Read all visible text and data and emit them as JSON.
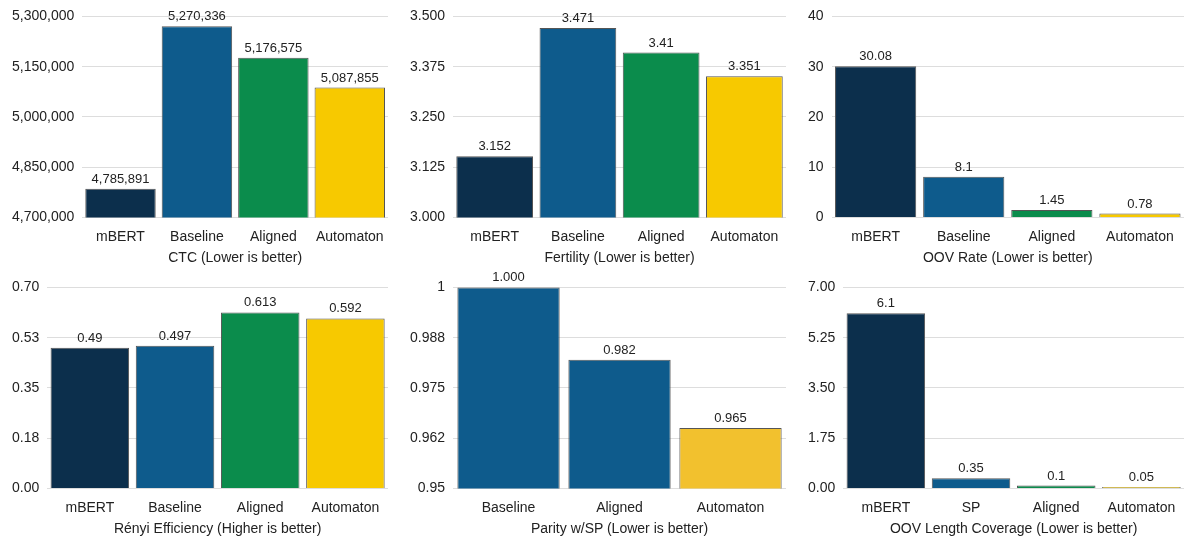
{
  "chart_data": [
    {
      "type": "bar",
      "xlabel": "CTC (Lower is better)",
      "categories": [
        "mBERT",
        "Baseline",
        "Aligned",
        "Automaton"
      ],
      "values": [
        4785891,
        5270336,
        5176575,
        5087855
      ],
      "value_labels": [
        "4,785,891",
        "5,270,336",
        "5,176,575",
        "5,087,855"
      ],
      "colors": [
        "#0c2f4c",
        "#0e5b8c",
        "#0b8c4c",
        "#f7c900"
      ],
      "ylim": [
        4700000,
        5300000
      ],
      "yticks": [
        {
          "value": 4700000,
          "label": "4,700,000"
        },
        {
          "value": 4850000,
          "label": "4,850,000"
        },
        {
          "value": 5000000,
          "label": "5,000,000"
        },
        {
          "value": 5150000,
          "label": "5,150,000"
        },
        {
          "value": 5300000,
          "label": "5,300,000"
        }
      ],
      "grid": "y"
    },
    {
      "type": "bar",
      "xlabel": "Fertility (Lower is better)",
      "categories": [
        "mBERT",
        "Baseline",
        "Aligned",
        "Automaton"
      ],
      "values": [
        3.152,
        3.471,
        3.41,
        3.351
      ],
      "value_labels": [
        "3.152",
        "3.471",
        "3.41",
        "3.351"
      ],
      "colors": [
        "#0c2f4c",
        "#0e5b8c",
        "#0b8c4c",
        "#f7c900"
      ],
      "ylim": [
        3.0,
        3.5
      ],
      "yticks": [
        {
          "value": 3.0,
          "label": "3.000"
        },
        {
          "value": 3.125,
          "label": "3.125"
        },
        {
          "value": 3.25,
          "label": "3.250"
        },
        {
          "value": 3.375,
          "label": "3.375"
        },
        {
          "value": 3.5,
          "label": "3.500"
        }
      ],
      "grid": "y"
    },
    {
      "type": "bar",
      "xlabel": "OOV Rate (Lower is better)",
      "categories": [
        "mBERT",
        "Baseline",
        "Aligned",
        "Automaton"
      ],
      "values": [
        30.08,
        8.1,
        1.45,
        0.78
      ],
      "value_labels": [
        "30.08",
        "8.1",
        "1.45",
        "0.78"
      ],
      "colors": [
        "#0c2f4c",
        "#0e5b8c",
        "#0b8c4c",
        "#f7c900"
      ],
      "ylim": [
        0,
        40
      ],
      "yticks": [
        0,
        10,
        20,
        30,
        40
      ],
      "grid": "y"
    },
    {
      "type": "bar",
      "xlabel": "Rényi Efficiency (Higher is better)",
      "categories": [
        "mBERT",
        "Baseline",
        "Aligned",
        "Automaton"
      ],
      "values": [
        0.49,
        0.497,
        0.613,
        0.592
      ],
      "value_labels": [
        "0.49",
        "0.497",
        "0.613",
        "0.592"
      ],
      "colors": [
        "#0c2f4c",
        "#0e5b8c",
        "#0b8c4c",
        "#f7c900"
      ],
      "ylim": [
        0,
        0.7
      ],
      "yticks": [
        {
          "value": 0,
          "label": "0.00"
        },
        {
          "value": 0.175,
          "label": "0.18"
        },
        {
          "value": 0.35,
          "label": "0.35"
        },
        {
          "value": 0.525,
          "label": "0.53"
        },
        {
          "value": 0.7,
          "label": "0.70"
        }
      ],
      "grid": "y"
    },
    {
      "type": "bar",
      "xlabel": "Parity w/SP (Lower is better)",
      "categories": [
        "Baseline",
        "Aligned",
        "Automaton"
      ],
      "values": [
        1.0,
        0.982,
        0.965
      ],
      "value_labels": [
        "1.000",
        "0.982",
        "0.965"
      ],
      "colors": [
        "#0e5b8c",
        "#0e5b8c",
        "#f2c12e"
      ],
      "ylim": [
        0.95,
        1.0
      ],
      "yticks": [
        {
          "value": 0.95,
          "label": "0.95"
        },
        {
          "value": 0.9625,
          "label": "0.962"
        },
        {
          "value": 0.975,
          "label": "0.975"
        },
        {
          "value": 0.9875,
          "label": "0.988"
        },
        {
          "value": 1.0,
          "label": "1"
        }
      ],
      "grid": "y"
    },
    {
      "type": "bar",
      "xlabel": "OOV Length Coverage (Lower is better)",
      "categories": [
        "mBERT",
        "SP",
        "Aligned",
        "Automaton"
      ],
      "values": [
        6.1,
        0.35,
        0.1,
        0.05
      ],
      "value_labels": [
        "6.1",
        "0.35",
        "0.1",
        "0.05"
      ],
      "colors": [
        "#0c2f4c",
        "#0e5b8c",
        "#0b8c4c",
        "#f7c900"
      ],
      "ylim": [
        0,
        7
      ],
      "yticks": [
        {
          "value": 0,
          "label": "0.00"
        },
        {
          "value": 1.75,
          "label": "1.75"
        },
        {
          "value": 3.5,
          "label": "3.50"
        },
        {
          "value": 5.25,
          "label": "5.25"
        },
        {
          "value": 7,
          "label": "7.00"
        }
      ],
      "grid": "y"
    }
  ]
}
